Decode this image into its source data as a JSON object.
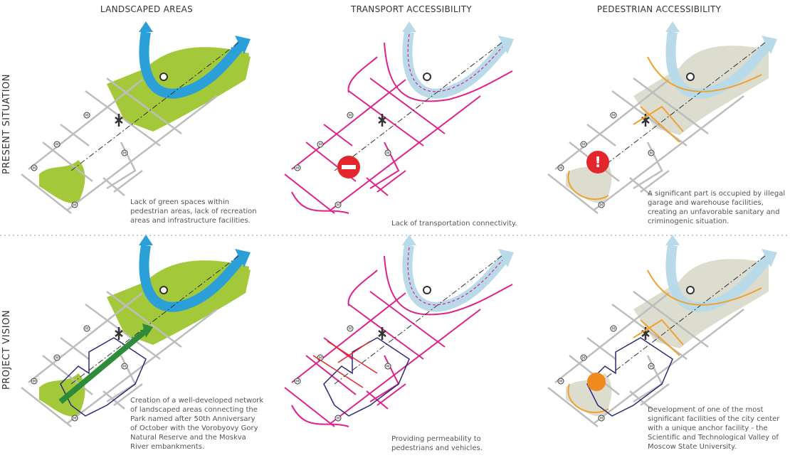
{
  "columns": [
    {
      "title": "LANDSCAPED AREAS"
    },
    {
      "title": "TRANSPORT ACCESSIBILITY"
    },
    {
      "title": "PEDESTRIAN ACCESSIBILITY"
    }
  ],
  "rows": [
    {
      "label": "PRESENT SITUATION",
      "captions": [
        [
          "Lack of green spaces within",
          "pedestrian areas, lack of recreation",
          "areas and infrastructure facilities."
        ],
        [
          "Lack of transportation connectivity."
        ],
        [
          "A significant part is occupied by illegal",
          "garage and warehouse facilities,",
          "creating an unfavorable sanitary and",
          "criminogenic situation."
        ]
      ]
    },
    {
      "label": "PROJECT VISION",
      "captions": [
        [
          "Creation of a well-developed network",
          "of landscaped areas connecting the",
          "Park named after 50th Anniversary",
          "of October with the Vorobyovy Gory",
          "Natural Reserve  and  the Moskva",
          "River embankments."
        ],
        [
          "Providing permeability to",
          "pedestrians and vehicles."
        ],
        [
          "Development of one of the most",
          "significant facilities of the city center",
          "with a unique anchor facility - the",
          "Scientific and Technological Valley of",
          "Moscow State University."
        ]
      ]
    }
  ],
  "metro_label": "M",
  "colors": {
    "green": "#a3c93a",
    "river": "#2a9fd8",
    "river_light": "#b9dbe9",
    "magenta": "#e0218a",
    "orange": "#f0a22e",
    "beige": "#dcdccf",
    "grid": "#bdbdbd",
    "red": "#e3262b"
  },
  "icons": [
    "river-arrow-icon",
    "metro-icon",
    "no-entry-icon",
    "warning-icon",
    "pedestrian-icon",
    "anchor-icon",
    "crossing-icon"
  ]
}
